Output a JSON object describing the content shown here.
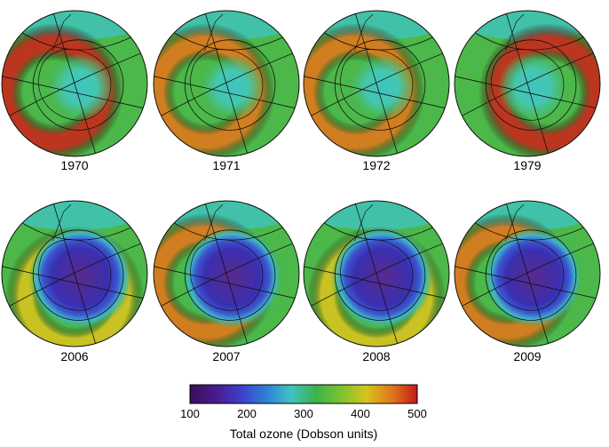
{
  "maps": [
    {
      "year": "1970",
      "hole_level": 0.1,
      "ring_level": 0.92,
      "ring_side": "left"
    },
    {
      "year": "1971",
      "hole_level": 0.05,
      "ring_level": 0.72,
      "ring_side": "left"
    },
    {
      "year": "1972",
      "hole_level": 0.08,
      "ring_level": 0.85,
      "ring_side": "left"
    },
    {
      "year": "1979",
      "hole_level": 0.18,
      "ring_level": 0.9,
      "ring_side": "right"
    },
    {
      "year": "2006",
      "hole_level": 1.0,
      "ring_level": 0.6,
      "ring_side": "bottom"
    },
    {
      "year": "2007",
      "hole_level": 0.95,
      "ring_level": 0.72,
      "ring_side": "left"
    },
    {
      "year": "2008",
      "hole_level": 0.98,
      "ring_level": 0.62,
      "ring_side": "bottom"
    },
    {
      "year": "2009",
      "hole_level": 0.9,
      "ring_level": 0.72,
      "ring_side": "left"
    }
  ],
  "colorbar": {
    "title": "Total ozone (Dobson units)",
    "ticks": [
      "100",
      "200",
      "300",
      "400",
      "500"
    ],
    "min": 100,
    "max": 500,
    "colors": [
      "#3a0f57",
      "#4a1a8c",
      "#3d3dc8",
      "#2f7fd6",
      "#3fc3c0",
      "#3fb14a",
      "#7cc42f",
      "#d6c31e",
      "#e0771b",
      "#c21a1a"
    ]
  }
}
